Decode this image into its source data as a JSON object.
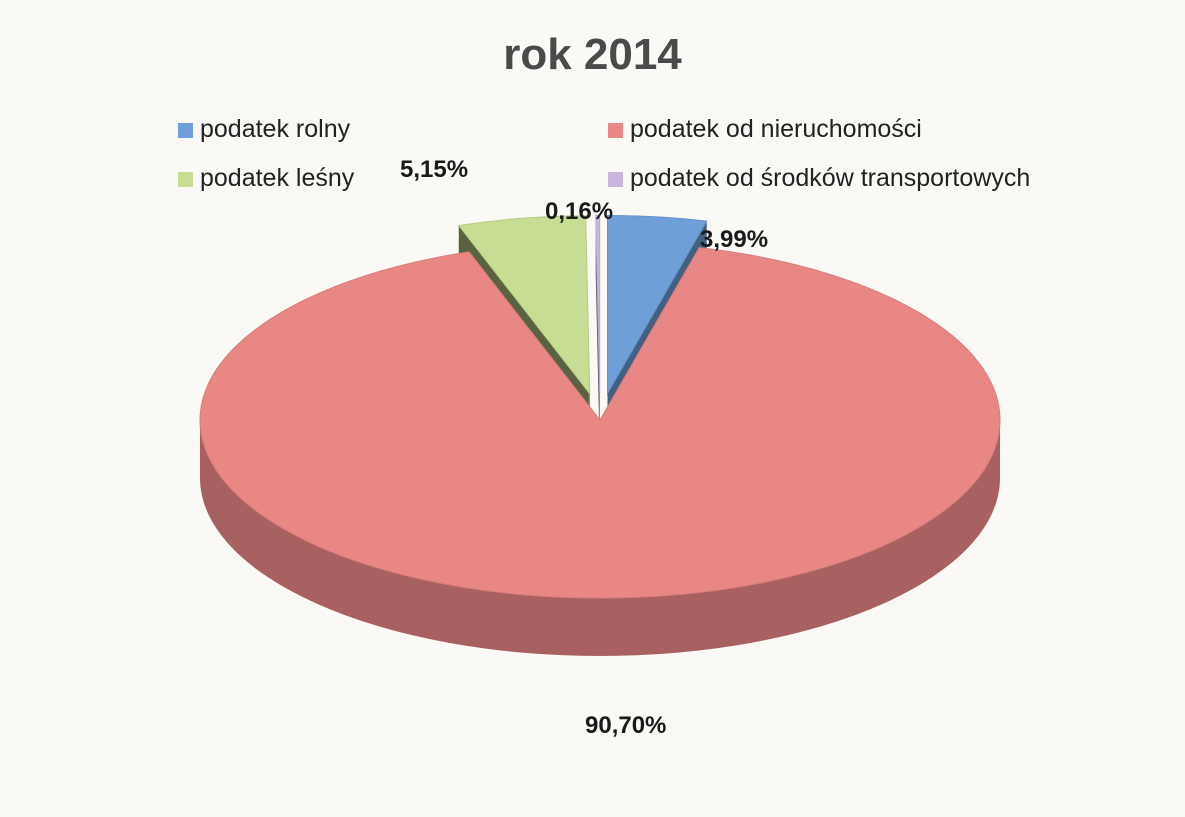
{
  "chart_data": {
    "type": "pie",
    "title": "rok 2014",
    "legend_placement": "top",
    "slices": [
      {
        "label": "podatek rolny",
        "value": 3.99,
        "value_label": "3,99%",
        "color": "#6f9fd8"
      },
      {
        "label": "podatek od nieruchomości",
        "value": 90.7,
        "value_label": "90,70%",
        "color": "#e98785"
      },
      {
        "label": "podatek leśny",
        "value": 5.15,
        "value_label": "5,15%",
        "color": "#c6dd93"
      },
      {
        "label": "podatek od środków transportowych",
        "value": 0.16,
        "value_label": "0,16%",
        "color": "#c9b6db"
      }
    ]
  }
}
